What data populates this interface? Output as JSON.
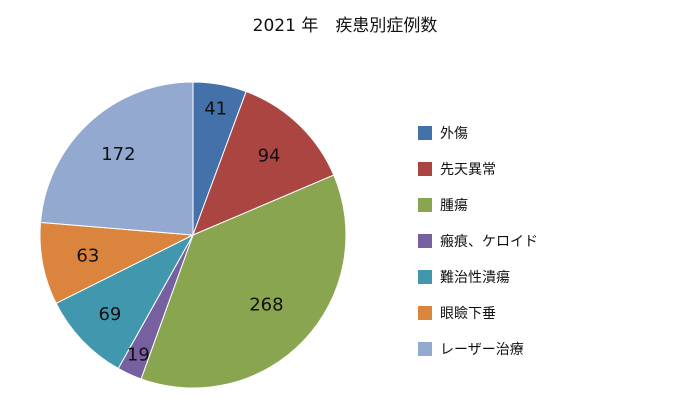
{
  "chart_data": {
    "type": "pie",
    "title": "2021 年　疾患別症例数",
    "categories": [
      "外傷",
      "先天異常",
      "腫瘍",
      "瘢痕、ケロイド",
      "難治性潰瘍",
      "眼瞼下垂",
      "レーザー治療"
    ],
    "values": [
      41,
      94,
      268,
      19,
      69,
      63,
      172
    ],
    "colors": [
      "#4471aa",
      "#aa4542",
      "#89a54f",
      "#7660a0",
      "#4197ad",
      "#db843d",
      "#93a9d0"
    ],
    "start_angle": "12 o'clock",
    "direction": "clockwise",
    "legend_position": "right"
  }
}
